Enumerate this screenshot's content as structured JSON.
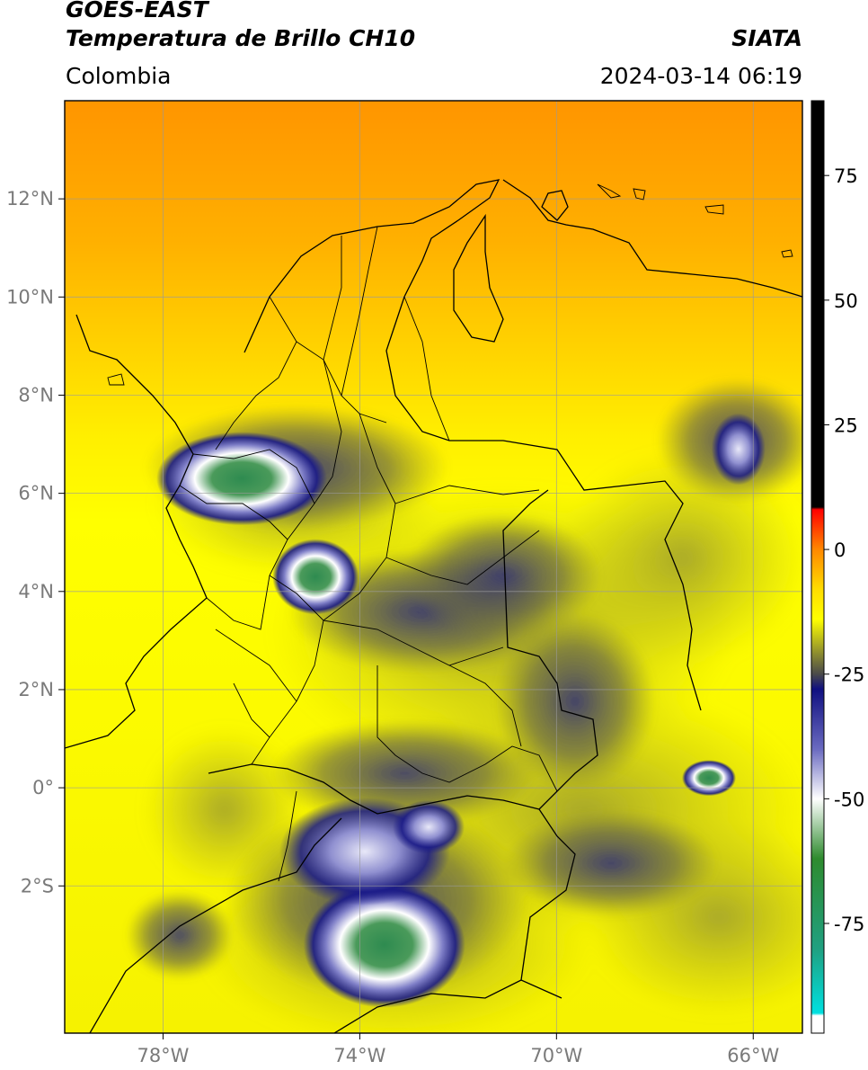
{
  "header": {
    "title_line1": "GOES-EAST",
    "title_line2": "Temperatura de Brillo CH10",
    "region": "Colombia",
    "brand": "SIATA",
    "timestamp": "2024-03-14 06:19"
  },
  "map": {
    "lon_labels": [
      "78°W",
      "74°W",
      "70°W",
      "66°W"
    ],
    "lat_labels": [
      "12°N",
      "10°N",
      "8°N",
      "6°N",
      "4°N",
      "2°N",
      "0°",
      "2°S"
    ],
    "lon_range": [
      -80,
      -65
    ],
    "lat_range": [
      -5,
      14
    ],
    "gridlines": true,
    "cold_cloud_areas": [
      {
        "name": "cloud-cluster-antioquia-west",
        "lon": -76.4,
        "lat": 6.3
      },
      {
        "name": "cloud-cluster-central-andes",
        "lon": -74.9,
        "lat": 4.3
      },
      {
        "name": "cloud-cluster-amazon-south",
        "lon": -73.5,
        "lat": -3.2
      },
      {
        "name": "cloud-cluster-amazon-north",
        "lon": -73.9,
        "lat": -1.3
      },
      {
        "name": "cloud-cluster-putumayo",
        "lon": -72.6,
        "lat": -0.8
      },
      {
        "name": "cloud-cluster-east-border",
        "lon": -66.9,
        "lat": 0.2
      },
      {
        "name": "cloud-cluster-venezuela",
        "lon": -66.3,
        "lat": 6.9
      }
    ]
  },
  "colorbar": {
    "tick_labels": [
      "75",
      "50",
      "25",
      "0",
      "-25",
      "-50",
      "-75"
    ],
    "tick_values": [
      75,
      50,
      25,
      0,
      -25,
      -50,
      -75
    ],
    "range": [
      -97,
      90
    ],
    "stops": [
      {
        "value": 90,
        "color": "#000000"
      },
      {
        "value": 8.5,
        "color": "#000000"
      },
      {
        "value": 8,
        "color": "#ff0000"
      },
      {
        "value": 0,
        "color": "#ff8800"
      },
      {
        "value": -8,
        "color": "#ffdd00"
      },
      {
        "value": -14,
        "color": "#ffff00"
      },
      {
        "value": -20,
        "color": "#9a9a2a"
      },
      {
        "value": -25,
        "color": "#4a4a4a"
      },
      {
        "value": -28,
        "color": "#101080"
      },
      {
        "value": -40,
        "color": "#6a6ac0"
      },
      {
        "value": -50,
        "color": "#ffffff"
      },
      {
        "value": -62,
        "color": "#2e8b2e"
      },
      {
        "value": -80,
        "color": "#20a080"
      },
      {
        "value": -93,
        "color": "#00e0e0"
      },
      {
        "value": -93.5,
        "color": "#ffffff"
      },
      {
        "value": -97,
        "color": "#ffffff"
      }
    ]
  }
}
